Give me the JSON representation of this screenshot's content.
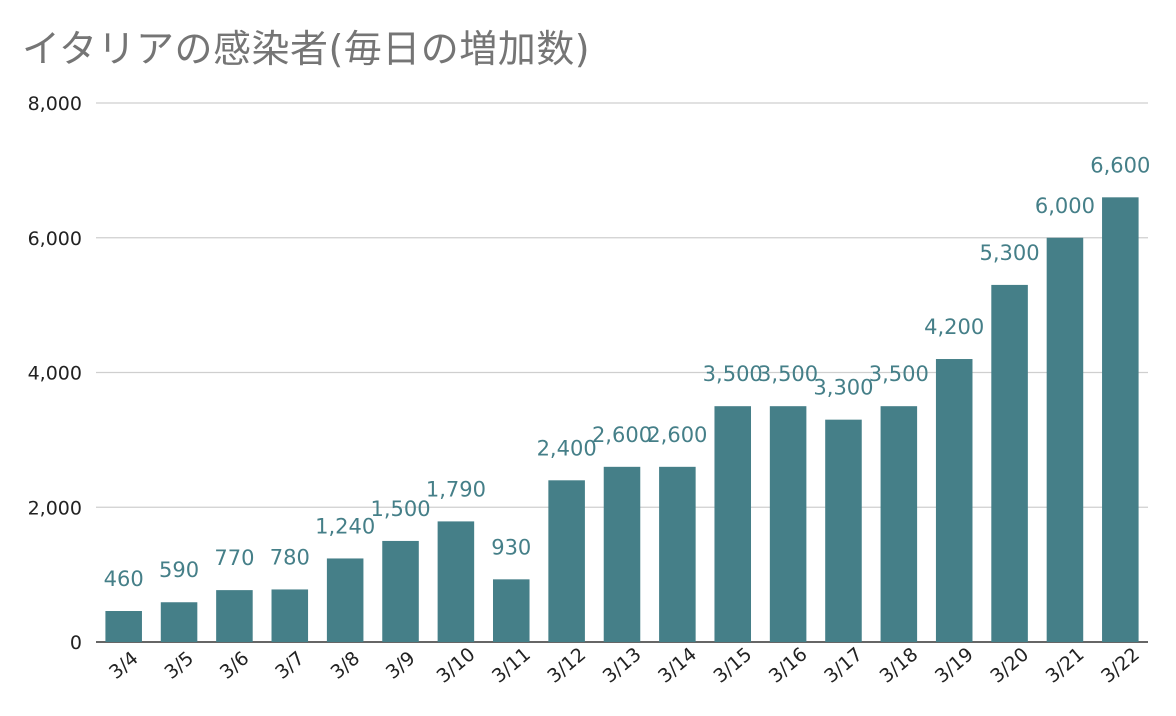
{
  "chart_data": {
    "type": "bar",
    "title": "イタリアの感染者(毎日の増加数)",
    "xlabel": "",
    "ylabel": "",
    "categories": [
      "3/4",
      "3/5",
      "3/6",
      "3/7",
      "3/8",
      "3/9",
      "3/10",
      "3/11",
      "3/12",
      "3/13",
      "3/14",
      "3/15",
      "3/16",
      "3/17",
      "3/18",
      "3/19",
      "3/20",
      "3/21",
      "3/22"
    ],
    "values": [
      460,
      590,
      770,
      780,
      1240,
      1500,
      1790,
      930,
      2400,
      2600,
      2600,
      3500,
      3500,
      3300,
      3500,
      4200,
      5300,
      6000,
      6600
    ],
    "data_labels": [
      "460",
      "590",
      "770",
      "780",
      "1,240",
      "1,500",
      "1,790",
      "930",
      "2,400",
      "2,600",
      "2,600",
      "3,500",
      "3,500",
      "3,300",
      "3,500",
      "4,200",
      "5,300",
      "6,000",
      "6,600"
    ],
    "ylim": [
      0,
      8000
    ],
    "yticks": [
      0,
      2000,
      4000,
      6000,
      8000
    ],
    "ytick_labels": [
      "0",
      "2,000",
      "4,000",
      "6,000",
      "8,000"
    ],
    "grid": true,
    "legend": "none",
    "colors": {
      "bar": "#457f88",
      "label": "#457f88",
      "title": "#757575",
      "grid": "#cfcfcf"
    }
  }
}
